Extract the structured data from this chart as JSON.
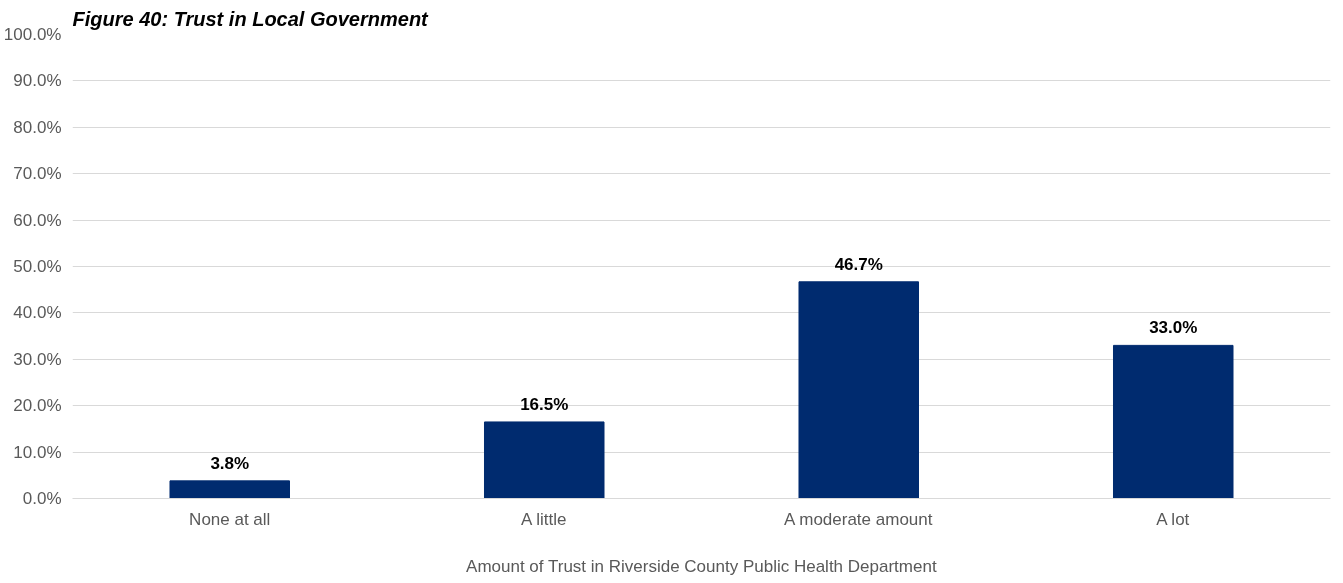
{
  "chart_data": {
    "type": "bar",
    "title": "Figure 40: Trust in Local Government",
    "xlabel": "Amount of Trust in Riverside County Public Health Department",
    "categories": [
      "None at all",
      "A little",
      "A moderate amount",
      "A lot"
    ],
    "values": [
      3.8,
      16.5,
      46.7,
      33.0
    ],
    "value_labels": [
      "3.8%",
      "16.5%",
      "46.7%",
      "33.0%"
    ],
    "color": "#002b6f",
    "ylim": [
      0,
      100
    ],
    "yticks": [
      {
        "value": 0,
        "label": "0.0%"
      },
      {
        "value": 10,
        "label": "10.0%"
      },
      {
        "value": 20,
        "label": "20.0%"
      },
      {
        "value": 30,
        "label": "30.0%"
      },
      {
        "value": 40,
        "label": "40.0%"
      },
      {
        "value": 50,
        "label": "50.0%"
      },
      {
        "value": 60,
        "label": "60.0%"
      },
      {
        "value": 70,
        "label": "70.0%"
      },
      {
        "value": 80,
        "label": "80.0%"
      },
      {
        "value": 90,
        "label": "90.0%"
      },
      {
        "value": 100,
        "label": "100.0%"
      }
    ],
    "grid": "y"
  }
}
